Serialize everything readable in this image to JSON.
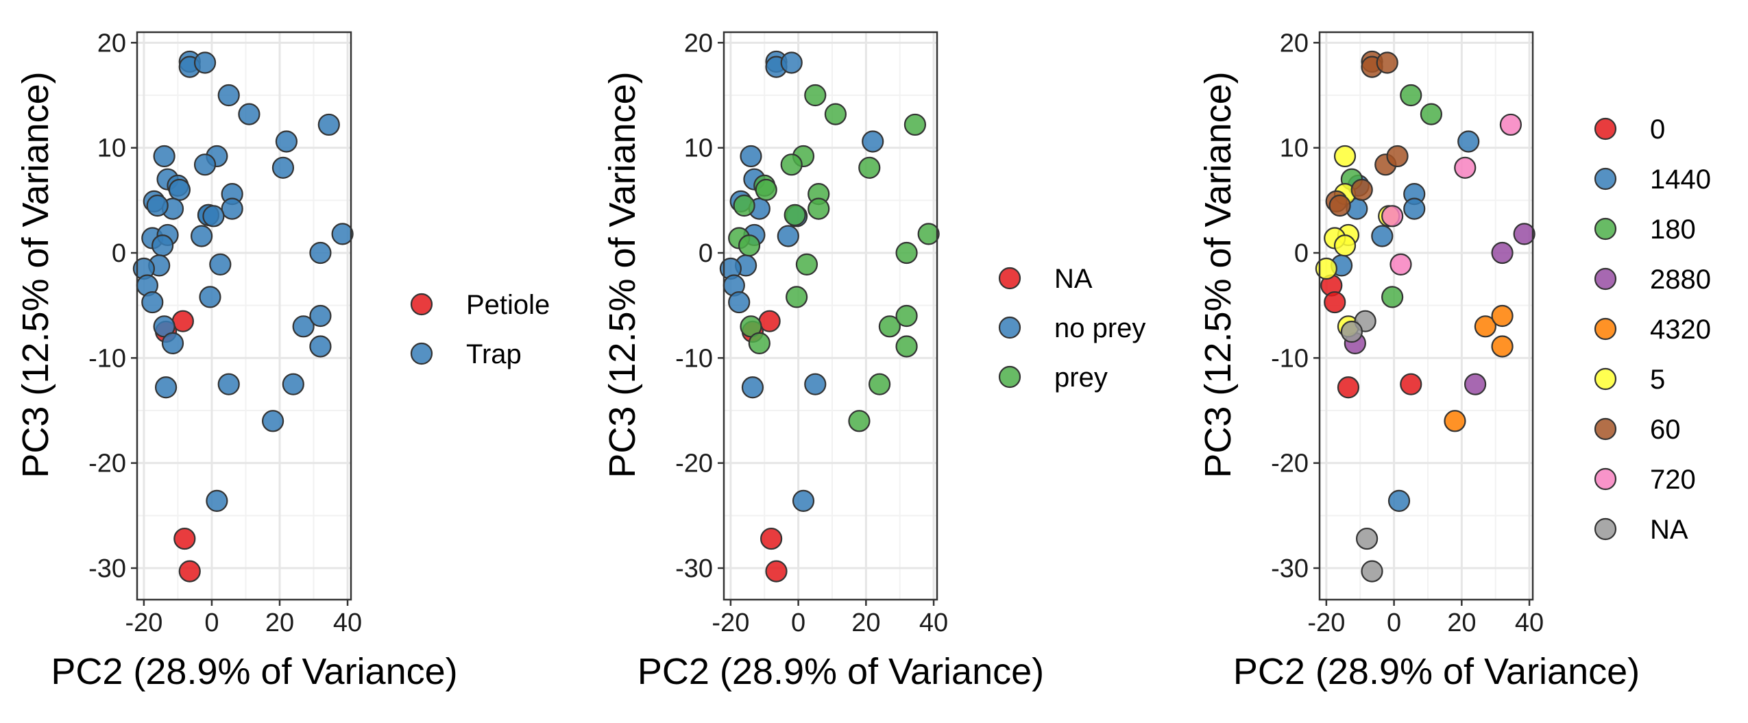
{
  "chart_data": [
    {
      "type": "scatter",
      "xlabel": "PC2 (28.9% of Variance)",
      "ylabel": "PC3 (12.5% of Variance)",
      "xlim": [
        -22,
        41
      ],
      "ylim": [
        -33,
        21
      ],
      "xticks": [
        -20,
        0,
        20,
        40
      ],
      "yticks": [
        20,
        10,
        0,
        -10,
        -20,
        -30
      ],
      "xtick_labels": [
        "-20",
        "0",
        "20",
        "40"
      ],
      "ytick_labels": [
        "20",
        "10",
        "0",
        "-10",
        "-20",
        "-30"
      ],
      "grid": true,
      "legend_position": "right",
      "series": [
        {
          "name": "Petiole",
          "color": "#E41A1C",
          "points": [
            [
              -8.5,
              -6.5
            ],
            [
              -13.5,
              -7.5
            ],
            [
              -8,
              -27.2
            ],
            [
              -6.5,
              -30.3
            ]
          ]
        },
        {
          "name": "Trap",
          "color": "#377EB8",
          "points": [
            [
              -6.5,
              18.2
            ],
            [
              -6.5,
              17.7
            ],
            [
              -2,
              18.1
            ],
            [
              5,
              15
            ],
            [
              11,
              13.2
            ],
            [
              22,
              10.6
            ],
            [
              21,
              8.1
            ],
            [
              34.5,
              12.2
            ],
            [
              1.5,
              9.2
            ],
            [
              -14,
              9.2
            ],
            [
              -2,
              8.4
            ],
            [
              6,
              5.6
            ],
            [
              6,
              4.2
            ],
            [
              -13,
              7
            ],
            [
              -10,
              6.4
            ],
            [
              -9.5,
              6
            ],
            [
              -17,
              4.9
            ],
            [
              -11.5,
              4.2
            ],
            [
              -16,
              4.5
            ],
            [
              -1,
              3.6
            ],
            [
              -1,
              3.6
            ],
            [
              0.5,
              3.5
            ],
            [
              -17.5,
              1.4
            ],
            [
              -13,
              1.7
            ],
            [
              -3,
              1.6
            ],
            [
              -14.5,
              0.7
            ],
            [
              -15.5,
              -1.2
            ],
            [
              2.5,
              -1.1
            ],
            [
              -20,
              -1.5
            ],
            [
              -19,
              -3.1
            ],
            [
              -17.5,
              -4.7
            ],
            [
              -0.5,
              -4.2
            ],
            [
              38.5,
              1.8
            ],
            [
              32,
              0
            ],
            [
              27,
              -7
            ],
            [
              32,
              -6
            ],
            [
              32,
              -8.9
            ],
            [
              -14,
              -7
            ],
            [
              -11.5,
              -8.6
            ],
            [
              -13.5,
              -12.8
            ],
            [
              5,
              -12.5
            ],
            [
              24,
              -12.5
            ],
            [
              18,
              -16
            ],
            [
              1.5,
              -23.6
            ]
          ]
        }
      ]
    },
    {
      "type": "scatter",
      "xlabel": "PC2 (28.9% of Variance)",
      "ylabel": "PC3 (12.5% of Variance)",
      "xlim": [
        -22,
        41
      ],
      "ylim": [
        -33,
        21
      ],
      "xticks": [
        -20,
        0,
        20,
        40
      ],
      "yticks": [
        20,
        10,
        0,
        -10,
        -20,
        -30
      ],
      "xtick_labels": [
        "-20",
        "0",
        "20",
        "40"
      ],
      "ytick_labels": [
        "20",
        "10",
        "0",
        "-10",
        "-20",
        "-30"
      ],
      "grid": true,
      "legend_position": "right",
      "series": [
        {
          "name": "NA",
          "color": "#E41A1C",
          "points": [
            [
              -8.5,
              -6.5
            ],
            [
              -13.5,
              -7.5
            ],
            [
              -8,
              -27.2
            ],
            [
              -6.5,
              -30.3
            ]
          ]
        },
        {
          "name": "no prey",
          "color": "#377EB8",
          "points": [
            [
              -6.5,
              18.2
            ],
            [
              -6.5,
              17.7
            ],
            [
              -2,
              18.1
            ],
            [
              22,
              10.6
            ],
            [
              -14,
              9.2
            ],
            [
              -13,
              7
            ],
            [
              -17,
              4.9
            ],
            [
              -11.5,
              4.2
            ],
            [
              -0.5,
              3.5
            ],
            [
              -13,
              1.7
            ],
            [
              -3,
              1.6
            ],
            [
              -15.5,
              -1.2
            ],
            [
              -20,
              -1.5
            ],
            [
              -19,
              -3.1
            ],
            [
              -17.5,
              -4.7
            ],
            [
              -13.5,
              -12.8
            ],
            [
              5,
              -12.5
            ],
            [
              1.5,
              -23.6
            ]
          ]
        },
        {
          "name": "prey",
          "color": "#4DAF4A",
          "points": [
            [
              5,
              15
            ],
            [
              11,
              13.2
            ],
            [
              21,
              8.1
            ],
            [
              34.5,
              12.2
            ],
            [
              1.5,
              9.2
            ],
            [
              -2,
              8.4
            ],
            [
              6,
              5.6
            ],
            [
              6,
              4.2
            ],
            [
              -10,
              6.4
            ],
            [
              -9.5,
              6
            ],
            [
              -16,
              4.5
            ],
            [
              -1,
              3.6
            ],
            [
              -17.5,
              1.4
            ],
            [
              -14.5,
              0.7
            ],
            [
              2.5,
              -1.1
            ],
            [
              -0.5,
              -4.2
            ],
            [
              38.5,
              1.8
            ],
            [
              32,
              0
            ],
            [
              27,
              -7
            ],
            [
              32,
              -6
            ],
            [
              32,
              -8.9
            ],
            [
              -14,
              -7
            ],
            [
              -11.5,
              -8.6
            ],
            [
              24,
              -12.5
            ],
            [
              18,
              -16
            ]
          ]
        }
      ]
    },
    {
      "type": "scatter",
      "xlabel": "PC2 (28.9% of Variance)",
      "ylabel": "PC3 (12.5% of Variance)",
      "xlim": [
        -22,
        41
      ],
      "ylim": [
        -33,
        21
      ],
      "xticks": [
        -20,
        0,
        20,
        40
      ],
      "yticks": [
        20,
        10,
        0,
        -10,
        -20,
        -30
      ],
      "xtick_labels": [
        "-20",
        "0",
        "20",
        "40"
      ],
      "ytick_labels": [
        "20",
        "10",
        "0",
        "-10",
        "-20",
        "-30"
      ],
      "grid": true,
      "legend_position": "right",
      "series": [
        {
          "name": "0",
          "color": "#E41A1C",
          "points": [
            [
              -18.5,
              -3.1
            ],
            [
              -17.5,
              -4.7
            ],
            [
              -13.5,
              -12.8
            ],
            [
              5,
              -12.5
            ]
          ]
        },
        {
          "name": "1440",
          "color": "#377EB8",
          "points": [
            [
              22,
              10.6
            ],
            [
              6,
              5.6
            ],
            [
              6,
              4.2
            ],
            [
              -11,
              4.2
            ],
            [
              -10.5,
              6.4
            ],
            [
              -3.5,
              1.6
            ],
            [
              -15.5,
              -1.2
            ],
            [
              1.5,
              -23.6
            ]
          ]
        },
        {
          "name": "180",
          "color": "#4DAF4A",
          "points": [
            [
              5,
              15
            ],
            [
              11,
              13.2
            ],
            [
              -12.5,
              7
            ],
            [
              -0.5,
              -4.2
            ]
          ]
        },
        {
          "name": "2880",
          "color": "#984EA3",
          "points": [
            [
              38.5,
              1.8
            ],
            [
              32,
              0
            ],
            [
              24,
              -12.5
            ],
            [
              -11.5,
              -8.6
            ]
          ]
        },
        {
          "name": "4320",
          "color": "#FF7F00",
          "points": [
            [
              27,
              -7
            ],
            [
              32,
              -6
            ],
            [
              32,
              -8.9
            ],
            [
              18,
              -16
            ]
          ]
        },
        {
          "name": "5",
          "color": "#FFFF33",
          "points": [
            [
              -14.5,
              9.2
            ],
            [
              -14.5,
              5.6
            ],
            [
              -13.5,
              1.7
            ],
            [
              -17.5,
              1.4
            ],
            [
              -14.5,
              0.7
            ],
            [
              -20,
              -1.5
            ],
            [
              -13.5,
              -7
            ],
            [
              -1.5,
              3.5
            ]
          ]
        },
        {
          "name": "60",
          "color": "#A65628",
          "points": [
            [
              -6.5,
              18.2
            ],
            [
              -6.5,
              17.7
            ],
            [
              -2,
              18.1
            ],
            [
              -2.5,
              8.4
            ],
            [
              -17,
              4.9
            ],
            [
              -16,
              4.5
            ],
            [
              -9.5,
              6
            ],
            [
              1,
              9.2
            ]
          ]
        },
        {
          "name": "720",
          "color": "#F781BF",
          "points": [
            [
              34.5,
              12.2
            ],
            [
              21,
              8.1
            ],
            [
              -0.5,
              3.5
            ],
            [
              2,
              -1.1
            ]
          ]
        },
        {
          "name": "NA",
          "color": "#999999",
          "points": [
            [
              -8.5,
              -6.5
            ],
            [
              -12.5,
              -7.5
            ],
            [
              -8,
              -27.2
            ],
            [
              -6.5,
              -30.3
            ]
          ]
        }
      ]
    }
  ]
}
